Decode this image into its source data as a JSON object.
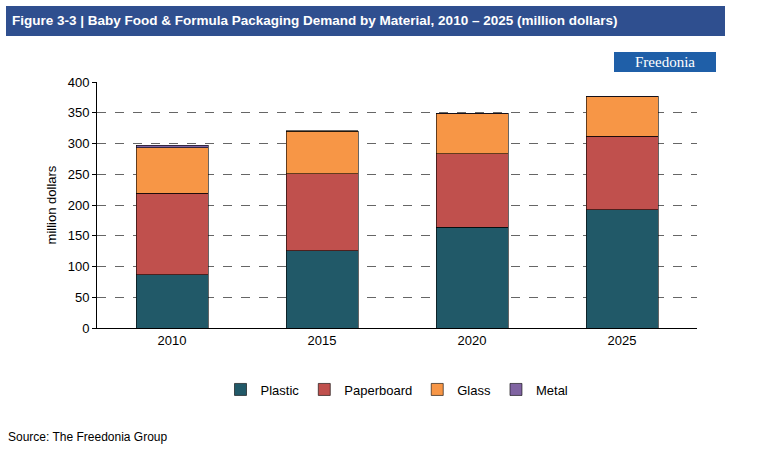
{
  "chart_data": {
    "type": "bar",
    "title": "Figure 3-3 | Baby Food & Formula Packaging Demand by Material, 2010 – 2025 (million dollars)",
    "logo": "Freedonia",
    "source": "Source: The Freedonia Group",
    "y_label": "million dollars",
    "categories": [
      "2010",
      "2015",
      "2020",
      "2025"
    ],
    "stacked": true,
    "series": [
      {
        "name": "Plastic",
        "color": "#215968",
        "values": [
          87,
          126,
          164,
          192
        ]
      },
      {
        "name": "Paperboard",
        "color": "#c0504d",
        "values": [
          132,
          125,
          119,
          120
        ]
      },
      {
        "name": "Glass",
        "color": "#f79646",
        "values": [
          74,
          69,
          65,
          64
        ]
      },
      {
        "name": "Metal",
        "color": "#8064a2",
        "values": [
          4,
          1,
          1,
          1
        ]
      }
    ],
    "ylim": [
      0,
      400
    ],
    "yticks": [
      0,
      50,
      100,
      150,
      200,
      250,
      300,
      350,
      400
    ],
    "grid": true,
    "legend": "bottom"
  }
}
